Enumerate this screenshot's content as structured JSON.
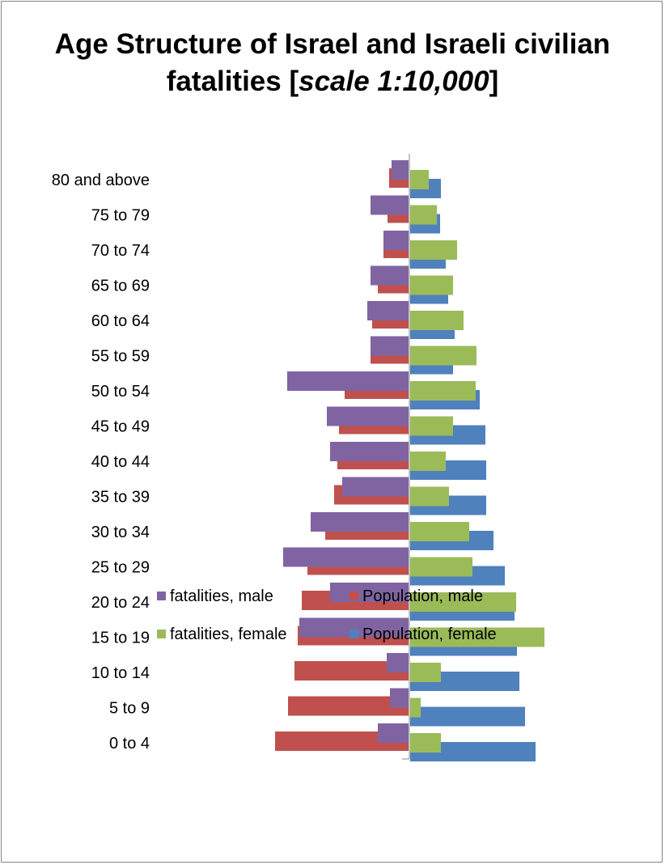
{
  "chart_data": {
    "type": "bar",
    "orientation": "horizontal",
    "layout": "population-pyramid",
    "title": "Age Structure of Israel and Israeli civilian fatalities [scale 1:10,000]",
    "title_line1": "Age Structure of Israel and Israeli civilian",
    "title_line2_prefix": "fatalities [",
    "title_line2_italic": "scale 1:10,000",
    "title_line2_suffix": "]",
    "categories": [
      "0 to 4",
      "5 to 9",
      "10 to 14",
      "15 to 19",
      "20 to 24",
      "25 to 29",
      "30 to 34",
      "35 to 39",
      "40 to 44",
      "45 to 49",
      "50 to 54",
      "55 to 59",
      "60 to 64",
      "65 to 69",
      "70 to 74",
      "75 to 79",
      "80 and above"
    ],
    "series": [
      {
        "name": "fatalities, male",
        "side": "left",
        "color": "#8064a2",
        "values": [
          38,
          23,
          27,
          135,
          97,
          155,
          121,
          82,
          97,
          101,
          150,
          47,
          51,
          47,
          31,
          47,
          21
        ]
      },
      {
        "name": "Population, male",
        "side": "left",
        "color": "#c0504d",
        "values": [
          165,
          149,
          141,
          137,
          132,
          125,
          103,
          92,
          88,
          86,
          79,
          47,
          45,
          38,
          31,
          26,
          24
        ]
      },
      {
        "name": "fatalities, female",
        "side": "right",
        "color": "#9bbb59",
        "values": [
          38,
          13,
          38,
          166,
          131,
          77,
          73,
          48,
          44,
          53,
          81,
          82,
          66,
          53,
          58,
          33,
          23
        ]
      },
      {
        "name": "Population, female",
        "side": "right",
        "color": "#4f81bd",
        "values": [
          155,
          142,
          135,
          132,
          129,
          117,
          103,
          94,
          94,
          93,
          86,
          53,
          55,
          47,
          44,
          37,
          38
        ]
      }
    ],
    "legend": {
      "position": "bottom",
      "order": [
        "fatalities, male",
        "Population, male",
        "fatalities, female",
        "Population, female"
      ]
    },
    "grid": false,
    "axis_ticks": "none"
  }
}
